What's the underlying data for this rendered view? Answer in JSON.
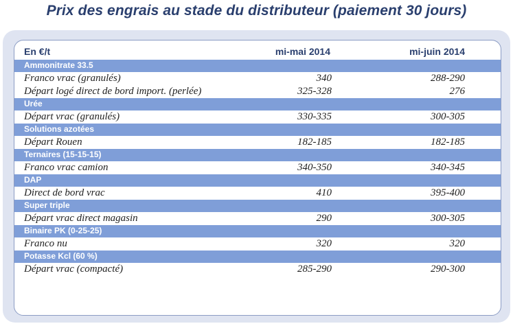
{
  "title": "Prix des engrais au stade du distributeur (paiement 30 jours)",
  "table": {
    "headers": [
      "En €/t",
      "mi-mai 2014",
      "mi-juin 2014"
    ],
    "sections": [
      {
        "category": "Ammonitrate 33.5",
        "rows": [
          {
            "label": "Franco vrac (granulés)",
            "may": "340",
            "june": "288-290"
          },
          {
            "label": "Départ logé direct de bord import. (perlée)",
            "may": "325-328",
            "june": "276"
          }
        ]
      },
      {
        "category": "Urée",
        "rows": [
          {
            "label": "Départ vrac (granulés)",
            "may": "330-335",
            "june": "300-305"
          }
        ]
      },
      {
        "category": "Solutions azotées",
        "rows": [
          {
            "label": "Départ Rouen",
            "may": "182-185",
            "june": "182-185"
          }
        ]
      },
      {
        "category": "Ternaires (15-15-15)",
        "rows": [
          {
            "label": "Franco vrac camion",
            "may": "340-350",
            "june": "340-345"
          }
        ]
      },
      {
        "category": "DAP",
        "rows": [
          {
            "label": "Direct de bord vrac",
            "may": "410",
            "june": "395-400"
          }
        ]
      },
      {
        "category": "Super triple",
        "rows": [
          {
            "label": "Départ vrac direct magasin",
            "may": "290",
            "june": "300-305"
          }
        ]
      },
      {
        "category": "Binaire PK (0-25-25)",
        "rows": [
          {
            "label": "Franco nu",
            "may": "320",
            "june": "320"
          }
        ]
      },
      {
        "category": "Potasse Kcl (60 %)",
        "rows": [
          {
            "label": "Départ vrac (compacté)",
            "may": "285-290",
            "june": "290-300"
          }
        ]
      }
    ]
  },
  "colors": {
    "title": "#2a3f6e",
    "panel": "#dfe4f1",
    "category_band": "#7f9ed8",
    "border": "#8b9cc4"
  }
}
